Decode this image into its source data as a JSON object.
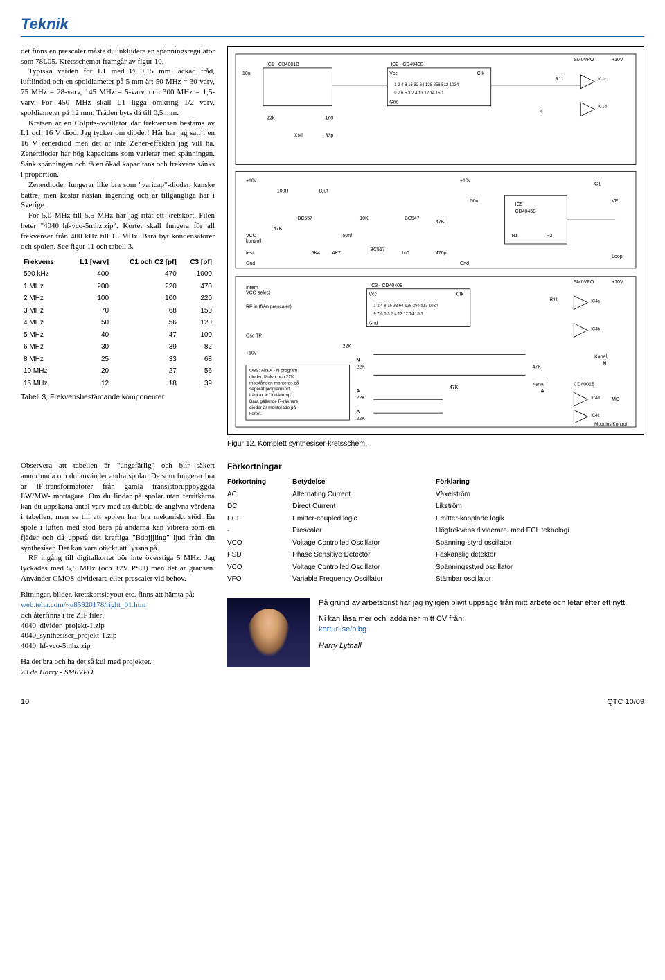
{
  "header": {
    "title": "Teknik"
  },
  "article": {
    "p1": "det finns en prescaler måste du inkludera en spänningsregulator som 78L05. Kretsschemat framgår av figur 10.",
    "p2": "Typiska värden för L1 med Ø 0,15 mm lackad tråd, luftlindad och en spoldiameter på 5 mm är: 50 MHz = 30-varv, 75 MHz = 28-varv, 145 MHz = 5-varv, och 300 MHz = 1,5-varv. För 450 MHz skall L1 ligga omkring 1/2 varv, spoldiameter på 12 mm. Tråden byts då till 0,5 mm.",
    "p3": "Kretsen är en Colpits-oscillator där frekvensen bestäms av L1 och 16 V diod. Jag tycker om dioder! Här har jag satt i en 16 V zenerdiod men det är inte Zener-effekten jag vill ha. Zenerdioder har hög kapacitans som varierar med spänningen. Sänk spänningen och få en ökad kapacitans och frekvens sänks i proportion.",
    "p4": "Zenerdioder fungerar like bra som \"varicap\"-dioder, kanske bättre, men kostar nästan ingenting och är tillgängliga här i Sverige.",
    "p5": "För 5,0 MHz till 5,5 MHz har jag ritat ett kretskort. Filen heter \"4040_hf-vco-5mhz.zip\". Kortet skall fungera för all frekvenser från 400 kHz till 15 MHz. Bara byt kondensatorer och spolen. See figur 11 och tabell 3."
  },
  "freq_table": {
    "columns": [
      "Frekvens",
      "L1 [varv]",
      "C1 och C2 [pf]",
      "C3 [pf]"
    ],
    "rows": [
      [
        "500 kHz",
        "400",
        "470",
        "1000"
      ],
      [
        "1 MHz",
        "200",
        "220",
        "470"
      ],
      [
        "2 MHz",
        "100",
        "100",
        "220"
      ],
      [
        "3 MHz",
        "70",
        "68",
        "150"
      ],
      [
        "4 MHz",
        "50",
        "56",
        "120"
      ],
      [
        "5 MHz",
        "40",
        "47",
        "100"
      ],
      [
        "6 MHz",
        "30",
        "39",
        "82"
      ],
      [
        "8 MHz",
        "25",
        "33",
        "68"
      ],
      [
        "10 MHz",
        "20",
        "27",
        "56"
      ],
      [
        "15 MHz",
        "12",
        "18",
        "39"
      ]
    ],
    "caption": "Tabell 3, Frekvensbestämande komponenter."
  },
  "schematic": {
    "caption": "Figur 12, Komplett synthesiser-kretsschem.",
    "labels": {
      "ic1": "IC1 - CB4001B",
      "ic2": "IC2 - CD4040B",
      "ic3": "IC3 - CD4040B",
      "ic4a": "IC4a",
      "ic4b": "IC4b",
      "ic4c": "IC4c",
      "ic4d": "IC4d",
      "ic5": "IC5\nCD4046B",
      "vcc": "Vcc",
      "clk": "Clk",
      "gnd": "Gnd",
      "sm0vpo": "SM0VPO",
      "+10v": "+10V",
      "pins_row": "1 2 4 8 16 32 64 128 256 512 1024",
      "pins_low": "9 7 6 5 3 2 4 13 12 14 15 1",
      "r11": "R11",
      "r": "R",
      "10u": "10u",
      "22k": "22K",
      "xtal": "Xtal",
      "33p": "33p",
      "1n0": "1n0",
      "100r": "100R",
      "10k": "10K",
      "10uf": "10uf",
      "47k": "47K",
      "4k7": "4K7",
      "5k4": "5K4",
      "50nf": "50nf",
      "bc557": "BC557",
      "bc547": "BC547",
      "470p": "470p",
      "1u0": "1u0",
      "r1": "R1",
      "r2": "R2",
      "loop": "Loop",
      "vco_kontroll": "VCO\nkontroll",
      "test": "test",
      "c1": "C1",
      "ve": "VE",
      "intern_vco": "Intern\nVCO select",
      "rf_in": "RF in (från prescaler)",
      "osc_tp": "Osc TP",
      "n22k": "N\n22K",
      "a22k": "A\n22K",
      "kanal_n": "Kanal\nN",
      "kanal_a": "Kanal\nA",
      "cd4001b": "CD4001B",
      "mc": "MC",
      "modulus": "Modulus Kontrol",
      "obs_box": "OBS: Alla A - N program\ndioder, länkar och 22K\nmotstånden monteras på\nseperat programkort.\nLänkar är \"löd-klump\".\nBara gällande R-räknare\ndioder är monterade på\nkortet."
    }
  },
  "lower_left": {
    "p1": "Observera att tabellen är \"ungefärlig\" och blir säkert annorlunda om du använder andra spolar. De som fungerar bra är IF-transformatorer från gamla transistoruppbyggda LW/MW- mottagare. Om du lindar på spolar utan ferritkärna kan du uppskatta antal varv med att dubbla de angivna värdena i tabellen, men se till att spolen har bra mekaniskt stöd. En spole i luften med stöd bara på ändarna kan vibrera som en fjäder och då uppstå det kraftiga \"Bdojjjiing\" ljud från din synthesiser. Det kan vara otäckt att lyssna på.",
    "p2": "RF ingång till digitalkortet bör inte överstiga 5 MHz. Jag lyckades med 5,5 MHz (och 12V PSU) men det är gränsen. Använder CMOS-dividerare eller prescaler vid behov.",
    "p3a": "Ritningar, bilder, kretskortslayout etc. finns att hämta på:",
    "link1": "web.telia.com/~u85920178/right_01.htm",
    "p3b": "och återfinns i tre ZIP filer:",
    "zip1": "4040_divider_projekt-1.zip",
    "zip2": "4040_synthesiser_projekt-1.zip",
    "zip3": "4040_hf-vco-5mhz.zip",
    "signoff1": "Ha det bra och ha det så kul med projektet.",
    "signoff2": "73 de Harry - SM0VPO"
  },
  "abbrev": {
    "title": "Förkortningar",
    "columns": [
      "Förkortning",
      "Betydelse",
      "Förklaring"
    ],
    "rows": [
      [
        "AC",
        "Alternating Current",
        "Växelström"
      ],
      [
        "DC",
        "Direct Current",
        "Likström"
      ],
      [
        "ECL",
        "Emitter-coupled logic",
        "Emitter-kopplade logik"
      ],
      [
        "-",
        "Prescaler",
        "Högfrekvens dividerare, med ECL teknologi"
      ],
      [
        "VCO",
        "Voltage Controlled Oscillator",
        "Spänning-styrd oscillator"
      ],
      [
        "PSD",
        "Phase Sensitive Detector",
        "Faskänslig detektor"
      ],
      [
        "VCO",
        "Voltage Controlled Oscillator",
        "Spänningsstyrd oscillator"
      ],
      [
        "VFO",
        "Variable Frequency Oscillator",
        "Stämbar oscillator"
      ]
    ]
  },
  "author": {
    "p1": "På grund av arbetsbrist har jag nyligen blivit uppsagd från mitt arbete och letar efter ett nytt.",
    "p2": "Ni kan läsa mer och ladda ner mitt CV från:",
    "link": "korturl.se/plbg",
    "name": "Harry Lythall"
  },
  "footer": {
    "page": "10",
    "issue": "QTC 10/09"
  }
}
